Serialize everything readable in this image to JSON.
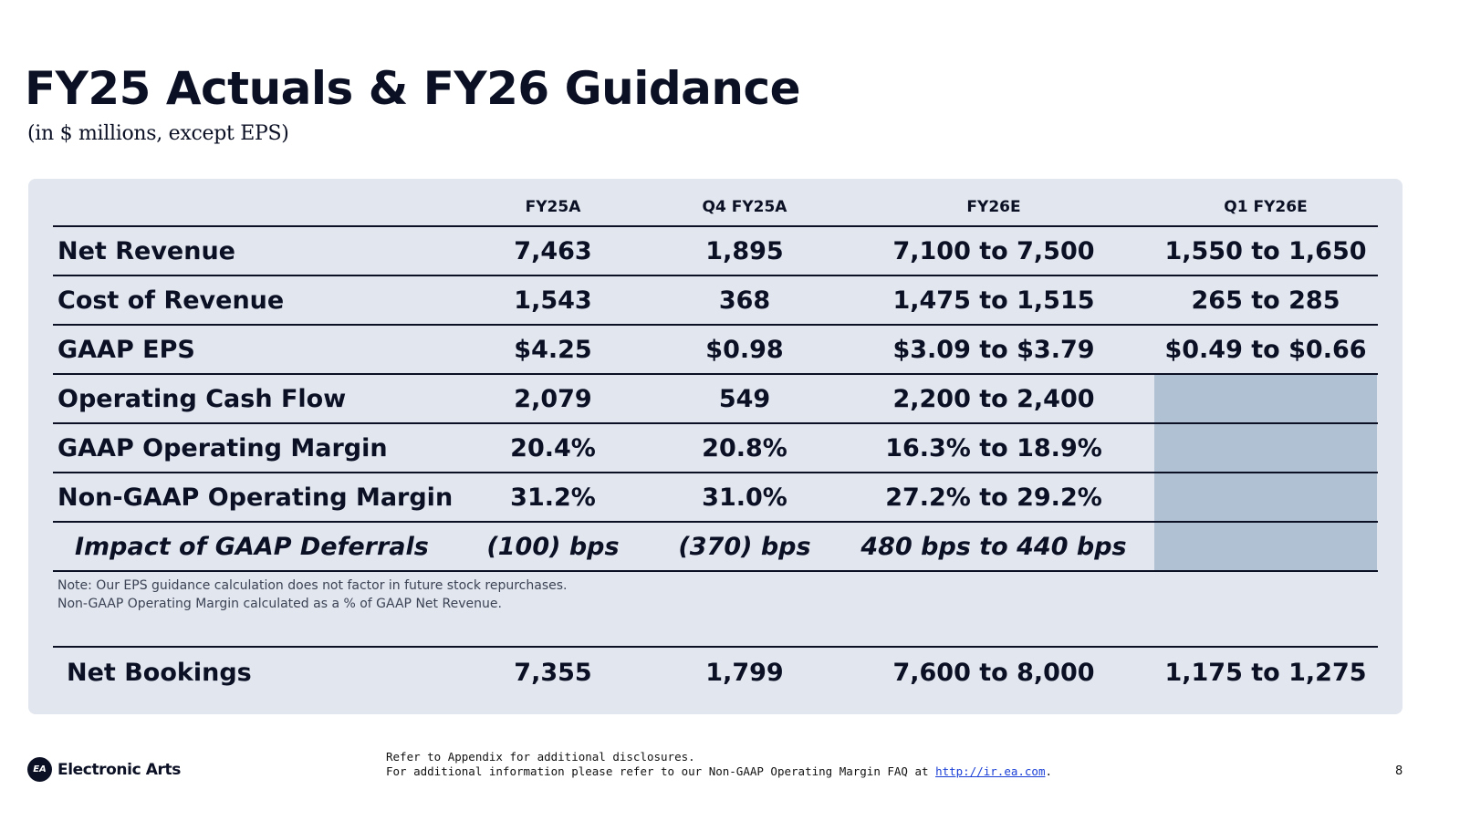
{
  "title": "FY25 Actuals & FY26 Guidance",
  "subtitle": "(in $ millions, except EPS)",
  "columns": [
    "FY25A",
    "Q4 FY25A",
    "FY26E",
    "Q1 FY26E"
  ],
  "rows": [
    {
      "label": "Net Revenue",
      "values": [
        "7,463",
        "1,895",
        "7,100 to 7,500",
        "1,550 to 1,650"
      ]
    },
    {
      "label": "Cost of Revenue",
      "values": [
        "1,543",
        "368",
        "1,475 to 1,515",
        "265 to 285"
      ]
    },
    {
      "label": "GAAP EPS",
      "values": [
        "$4.25",
        "$0.98",
        "$3.09 to $3.79",
        "$0.49 to $0.66"
      ]
    },
    {
      "label": "Operating Cash Flow",
      "values": [
        "2,079",
        "549",
        "2,200 to 2,400",
        ""
      ]
    },
    {
      "label": "GAAP Operating Margin",
      "values": [
        "20.4%",
        "20.8%",
        "16.3% to 18.9%",
        ""
      ]
    },
    {
      "label": "Non-GAAP Operating Margin",
      "values": [
        "31.2%",
        "31.0%",
        "27.2% to 29.2%",
        ""
      ]
    },
    {
      "label": "Impact of GAAP Deferrals",
      "values": [
        "(100) bps",
        "(370) bps",
        "480 bps to 440 bps",
        ""
      ]
    }
  ],
  "notes": {
    "line1": "Note: Our EPS guidance calculation does not factor in future stock repurchases.",
    "line2": "Non-GAAP Operating Margin calculated as a % of GAAP Net Revenue."
  },
  "bookings": {
    "label": "Net Bookings",
    "values": [
      "7,355",
      "1,799",
      "7,600 to 8,000",
      "1,175 to 1,275"
    ]
  },
  "footer": {
    "logo_badge": "EA",
    "logo_text": "Electronic Arts",
    "line1": "Refer to Appendix for additional disclosures.",
    "line2_prefix": "For additional information please refer to our Non-GAAP Operating Margin FAQ at ",
    "link": "http://ir.ea.com",
    "line2_suffix": ".",
    "page_number": "8"
  },
  "colors": {
    "shade": "#b0c1d3",
    "panel": "#e1e6ef",
    "text": "#0b1024",
    "link": "#1a3fd6"
  }
}
